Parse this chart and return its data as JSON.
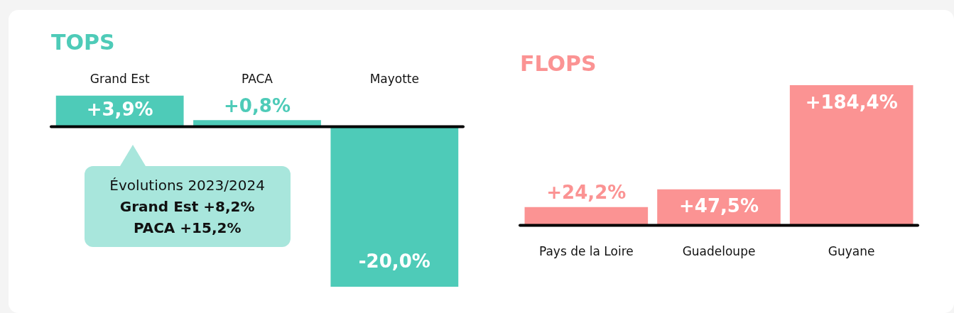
{
  "chart_data": [
    {
      "type": "bar",
      "title": "TOPS",
      "categories": [
        "Grand Est",
        "PACA",
        "Mayotte"
      ],
      "series": [
        {
          "color": "#4ecbb8",
          "values": [
            3.9,
            0.8,
            -20.0
          ],
          "value_labels": [
            "+3,9%",
            "+0,8%",
            "-20,0%"
          ]
        }
      ],
      "annotations": [
        "Évolutions 2023/2024",
        "Grand Est +8,2%",
        "PACA +15,2%"
      ]
    },
    {
      "type": "bar",
      "title": "FLOPS",
      "categories": [
        "Pays de la Loire",
        "Guadeloupe",
        "Guyane"
      ],
      "series": [
        {
          "color": "#fb9393",
          "values": [
            24.2,
            47.5,
            184.4
          ],
          "value_labels": [
            "+24,2%",
            "+47,5%",
            "+184,4%"
          ]
        }
      ]
    }
  ]
}
